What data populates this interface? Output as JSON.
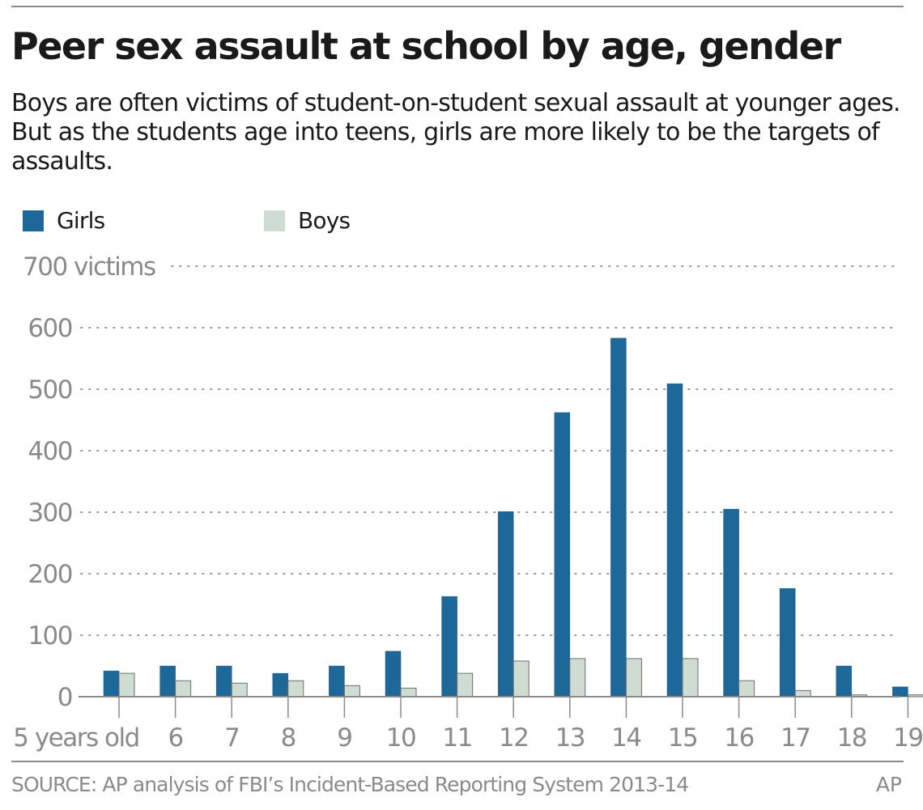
{
  "header": {
    "title": "Peer sex assault at school by age, gender",
    "subtitle": "Boys are often victims of student-on-student sexual assault at younger ages. But as the students age into teens, girls are more likely to be the targets of assaults."
  },
  "legend": [
    {
      "name": "Girls",
      "color": "#1d6899"
    },
    {
      "name": "Boys",
      "color": "#cfdcd2"
    }
  ],
  "footer": {
    "source": "SOURCE: AP analysis of FBI’s Incident-Based Reporting System 2013-14",
    "credit": "AP"
  },
  "chart_data": {
    "type": "bar",
    "title": "Peer sex assault at school by age, gender",
    "xlabel": "",
    "ylabel": "victims",
    "ylim": [
      0,
      700
    ],
    "grid": true,
    "legend_position": "top-left",
    "categories": [
      "5 years old",
      "6",
      "7",
      "8",
      "9",
      "10",
      "11",
      "12",
      "13",
      "14",
      "15",
      "16",
      "17",
      "18",
      "19"
    ],
    "y_ticks": [
      {
        "value": 700,
        "label": "700 victims"
      },
      {
        "value": 600,
        "label": "600"
      },
      {
        "value": 500,
        "label": "500"
      },
      {
        "value": 400,
        "label": "400"
      },
      {
        "value": 300,
        "label": "300"
      },
      {
        "value": 200,
        "label": "200"
      },
      {
        "value": 100,
        "label": "100"
      },
      {
        "value": 0,
        "label": "0"
      }
    ],
    "series": [
      {
        "name": "Girls",
        "color": "#1d6899",
        "values": [
          42,
          50,
          50,
          38,
          50,
          74,
          163,
          301,
          462,
          583,
          509,
          305,
          176,
          50,
          16
        ]
      },
      {
        "name": "Boys",
        "color": "#cfdcd2",
        "values": [
          38,
          26,
          22,
          26,
          18,
          14,
          38,
          58,
          62,
          62,
          62,
          26,
          10,
          3,
          3
        ]
      }
    ]
  }
}
